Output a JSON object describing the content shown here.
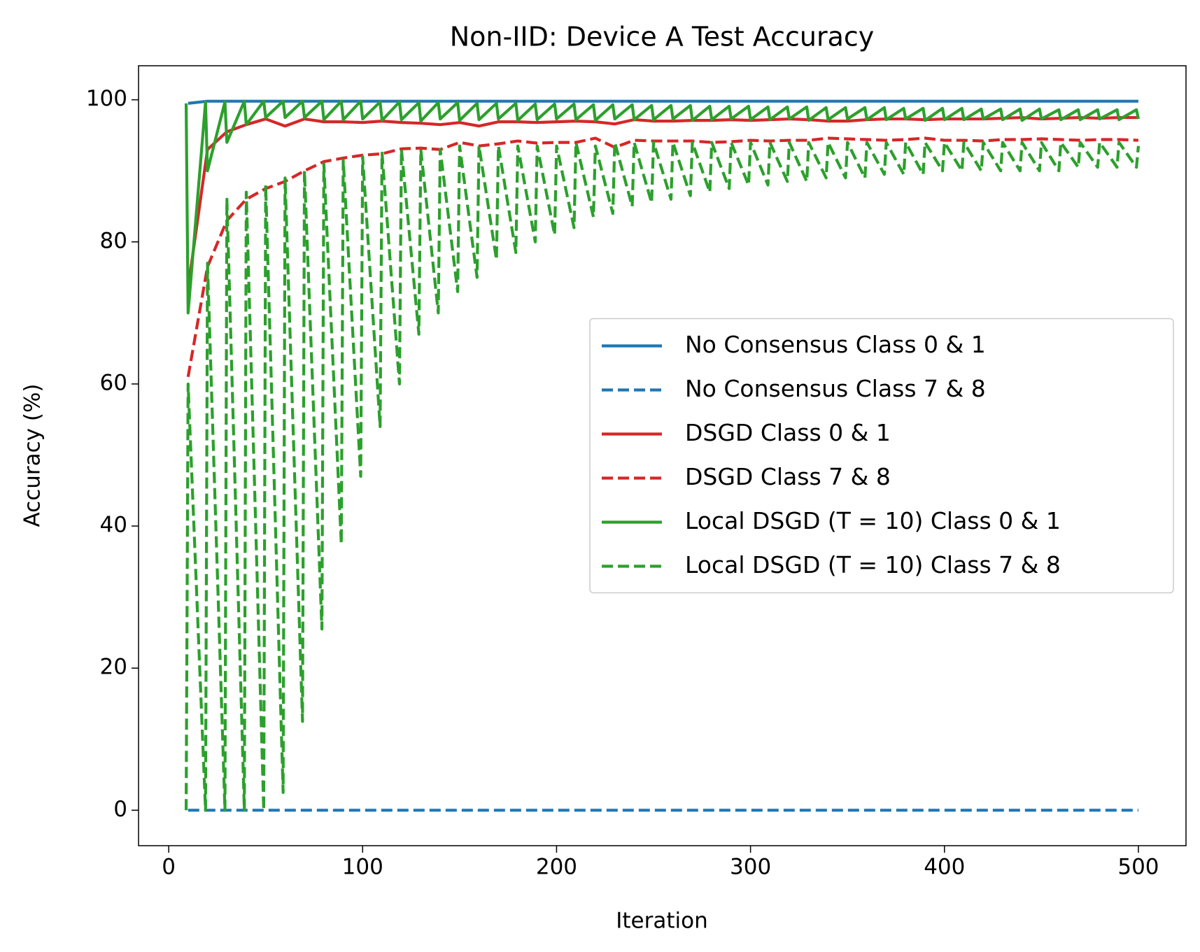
{
  "chart_data": {
    "type": "line",
    "title": "Non-IID: Device A Test Accuracy",
    "x_label": "Iteration",
    "y_label": "Accuracy (%)",
    "xlim": [
      -15.55,
      524.55
    ],
    "ylim": [
      -4.99,
      104.79
    ],
    "xticks": [
      0,
      100,
      200,
      300,
      400,
      500
    ],
    "yticks": [
      0,
      20,
      40,
      60,
      80,
      100
    ],
    "grid": false,
    "legend": "center right",
    "series": [
      {
        "name": "No Consensus Class 0 & 1",
        "color": "#1f77b4",
        "style": "solid",
        "x": [
          10,
          20,
          30,
          40,
          50,
          60,
          70,
          80,
          90,
          100,
          110,
          120,
          130,
          140,
          150,
          160,
          170,
          180,
          190,
          200,
          210,
          220,
          230,
          240,
          250,
          260,
          270,
          280,
          290,
          300,
          310,
          320,
          330,
          340,
          350,
          360,
          370,
          380,
          390,
          400,
          410,
          420,
          430,
          440,
          450,
          460,
          470,
          480,
          490,
          500
        ],
        "values": [
          99.5,
          99.8,
          99.8,
          99.8,
          99.8,
          99.8,
          99.8,
          99.8,
          99.8,
          99.8,
          99.8,
          99.8,
          99.8,
          99.8,
          99.8,
          99.8,
          99.8,
          99.8,
          99.8,
          99.8,
          99.8,
          99.8,
          99.8,
          99.8,
          99.8,
          99.8,
          99.8,
          99.8,
          99.8,
          99.8,
          99.8,
          99.8,
          99.8,
          99.8,
          99.8,
          99.8,
          99.8,
          99.8,
          99.8,
          99.8,
          99.8,
          99.8,
          99.8,
          99.8,
          99.8,
          99.8,
          99.8,
          99.8,
          99.8,
          99.8
        ]
      },
      {
        "name": "No Consensus Class 7 & 8",
        "color": "#1f77b4",
        "style": "dashed",
        "x": [
          10,
          20,
          30,
          40,
          50,
          60,
          70,
          80,
          90,
          100,
          110,
          120,
          130,
          140,
          150,
          160,
          170,
          180,
          190,
          200,
          210,
          220,
          230,
          240,
          250,
          260,
          270,
          280,
          290,
          300,
          310,
          320,
          330,
          340,
          350,
          360,
          370,
          380,
          390,
          400,
          410,
          420,
          430,
          440,
          450,
          460,
          470,
          480,
          490,
          500
        ],
        "values": [
          0,
          0,
          0,
          0,
          0,
          0,
          0,
          0,
          0,
          0,
          0,
          0,
          0,
          0,
          0,
          0,
          0,
          0,
          0,
          0,
          0,
          0,
          0,
          0,
          0,
          0,
          0,
          0,
          0,
          0,
          0,
          0,
          0,
          0,
          0,
          0,
          0,
          0,
          0,
          0,
          0,
          0,
          0,
          0,
          0,
          0,
          0,
          0,
          0,
          0
        ]
      },
      {
        "name": "DSGD Class 0 & 1",
        "color": "#d62728",
        "style": "solid",
        "x": [
          10,
          20,
          30,
          40,
          50,
          60,
          70,
          80,
          90,
          100,
          110,
          120,
          130,
          140,
          150,
          160,
          170,
          180,
          190,
          200,
          210,
          220,
          230,
          240,
          250,
          260,
          270,
          280,
          290,
          300,
          310,
          320,
          330,
          340,
          350,
          360,
          370,
          380,
          390,
          400,
          410,
          420,
          430,
          440,
          450,
          460,
          470,
          480,
          490,
          500
        ],
        "values": [
          73.5,
          93,
          95.5,
          96.5,
          97.3,
          96.3,
          97.3,
          96.9,
          96.9,
          96.8,
          97.0,
          96.8,
          96.7,
          96.5,
          96.8,
          96.3,
          96.9,
          96.9,
          96.8,
          96.9,
          97.0,
          96.9,
          96.6,
          97.2,
          97.0,
          97.0,
          97.1,
          97.1,
          97.2,
          97.1,
          97.2,
          97.3,
          97.2,
          97.0,
          97.0,
          97.2,
          97.3,
          97.3,
          97.2,
          97.3,
          97.3,
          97.3,
          97.4,
          97.5,
          97.3,
          97.4,
          97.5,
          97.4,
          97.5,
          97.5
        ]
      },
      {
        "name": "DSGD Class 7 & 8",
        "color": "#d62728",
        "style": "dashed",
        "x": [
          10,
          20,
          30,
          40,
          50,
          60,
          70,
          80,
          90,
          100,
          110,
          120,
          130,
          140,
          150,
          160,
          170,
          180,
          190,
          200,
          210,
          220,
          230,
          240,
          250,
          260,
          270,
          280,
          290,
          300,
          310,
          320,
          330,
          340,
          350,
          360,
          370,
          380,
          390,
          400,
          410,
          420,
          430,
          440,
          450,
          460,
          470,
          480,
          490,
          500
        ],
        "values": [
          61,
          76.5,
          83,
          86,
          87.5,
          88.5,
          90,
          91.3,
          91.8,
          92.2,
          92.4,
          93.1,
          93.2,
          93.0,
          94.0,
          93.5,
          93.8,
          94.2,
          93.9,
          94.0,
          94.0,
          94.6,
          93.3,
          94.3,
          94.2,
          94.2,
          94.2,
          94.0,
          94.1,
          94.3,
          94.2,
          94.3,
          94.3,
          94.6,
          94.5,
          94.4,
          94.3,
          94.4,
          94.6,
          94.3,
          94.3,
          94.2,
          94.4,
          94.4,
          94.5,
          94.4,
          94.3,
          94.4,
          94.4,
          94.3
        ]
      },
      {
        "name": "Local DSGD (T = 10) Class 0 & 1",
        "color": "#2ca02c",
        "style": "solid",
        "x": [
          9,
          10,
          19,
          20,
          29,
          30,
          39,
          40,
          49,
          50,
          59,
          60,
          69,
          70,
          79,
          80,
          89,
          90,
          99,
          100,
          109,
          110,
          119,
          120,
          129,
          130,
          139,
          140,
          149,
          150,
          159,
          160,
          169,
          170,
          179,
          180,
          189,
          190,
          199,
          200,
          209,
          210,
          219,
          220,
          229,
          230,
          239,
          240,
          249,
          250,
          259,
          260,
          269,
          270,
          279,
          280,
          289,
          290,
          299,
          300,
          309,
          310,
          319,
          320,
          329,
          330,
          339,
          340,
          349,
          350,
          359,
          360,
          369,
          370,
          379,
          380,
          389,
          390,
          399,
          400,
          409,
          410,
          419,
          420,
          429,
          430,
          439,
          440,
          449,
          450,
          459,
          460,
          469,
          470,
          479,
          480,
          489,
          490,
          499,
          500
        ],
        "values": [
          99.5,
          70,
          99.7,
          90,
          99.7,
          94,
          99.8,
          96.5,
          99.8,
          97.5,
          99.8,
          97.5,
          99.8,
          97.5,
          99.8,
          97.2,
          99.8,
          97.2,
          99.8,
          97.3,
          99.7,
          97.1,
          99.7,
          97.2,
          99.6,
          97.0,
          99.6,
          97.3,
          99.6,
          97.1,
          99.5,
          97.2,
          99.5,
          97.3,
          99.5,
          97.1,
          99.4,
          97.2,
          99.4,
          97.3,
          99.4,
          97.2,
          99.3,
          97.1,
          99.3,
          97.3,
          99.3,
          97.2,
          99.2,
          97.2,
          99.2,
          97.3,
          99.2,
          97.1,
          99.1,
          97.2,
          99.1,
          97.3,
          99.1,
          97.2,
          99.0,
          97.2,
          99.0,
          97.3,
          99.0,
          97.1,
          98.9,
          97.2,
          98.9,
          97.3,
          98.9,
          97.2,
          98.9,
          97.2,
          98.8,
          97.3,
          98.8,
          97.1,
          98.8,
          97.2,
          98.8,
          97.2,
          98.7,
          97.3,
          98.7,
          97.2,
          98.7,
          97.1,
          98.7,
          97.3,
          98.6,
          97.2,
          98.6,
          97.2,
          98.6,
          97.3,
          98.6,
          97.2,
          98.6,
          97.3
        ]
      },
      {
        "name": "Local DSGD (T = 10) Class 7 & 8",
        "color": "#2ca02c",
        "style": "dashed",
        "x": [
          9,
          10,
          19,
          20,
          29,
          30,
          39,
          40,
          49,
          50,
          59,
          60,
          69,
          70,
          79,
          80,
          89,
          90,
          99,
          100,
          109,
          110,
          119,
          120,
          129,
          130,
          139,
          140,
          149,
          150,
          159,
          160,
          169,
          170,
          179,
          180,
          189,
          190,
          199,
          200,
          209,
          210,
          219,
          220,
          229,
          230,
          239,
          240,
          249,
          250,
          259,
          260,
          269,
          270,
          279,
          280,
          289,
          290,
          299,
          300,
          309,
          310,
          319,
          320,
          329,
          330,
          339,
          340,
          349,
          350,
          359,
          360,
          369,
          370,
          379,
          380,
          389,
          390,
          399,
          400,
          409,
          410,
          419,
          420,
          429,
          430,
          439,
          440,
          449,
          450,
          459,
          460,
          469,
          470,
          479,
          480,
          489,
          490,
          499,
          500
        ],
        "values": [
          0,
          60,
          0,
          77,
          0,
          86,
          0,
          87,
          0,
          88,
          2.5,
          89,
          12.5,
          90,
          25.5,
          91,
          37.5,
          91.5,
          47,
          92,
          54,
          92.5,
          60,
          93,
          67,
          93,
          70,
          93,
          73,
          93.5,
          75,
          93.5,
          77.5,
          93.5,
          78.5,
          93.5,
          80,
          93.5,
          81,
          93.5,
          82,
          94,
          83.5,
          93.5,
          84,
          94,
          85,
          94,
          85.5,
          94,
          86,
          94,
          86.5,
          94,
          87,
          94,
          87.5,
          94,
          88,
          94,
          88,
          94,
          88.5,
          94,
          88.5,
          94,
          89,
          94,
          89,
          94,
          89,
          94,
          89.5,
          94,
          89.5,
          94,
          89.5,
          94,
          90,
          94,
          90,
          94,
          90,
          94,
          90,
          94,
          90,
          94,
          90,
          94,
          90,
          94,
          90.5,
          94,
          90.5,
          94,
          90.5,
          94,
          90.5,
          93.5
        ]
      }
    ]
  }
}
